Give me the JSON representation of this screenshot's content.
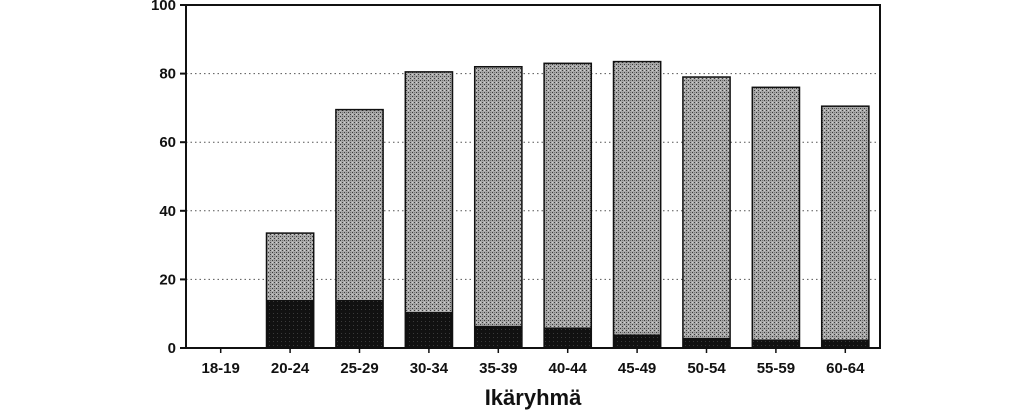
{
  "chart_data": {
    "type": "bar",
    "stacked": true,
    "categories": [
      "18-19",
      "20-24",
      "25-29",
      "30-34",
      "35-39",
      "40-44",
      "45-49",
      "50-54",
      "55-59",
      "60-64"
    ],
    "series": [
      {
        "values": [
          0,
          14,
          14,
          10.5,
          6.5,
          6,
          4,
          3,
          2.5,
          2.5
        ],
        "color": "#151515"
      },
      {
        "values": [
          0,
          19.5,
          55.5,
          70,
          75.5,
          77,
          79.5,
          76,
          73.5,
          68
        ],
        "color": "#9a9a9a"
      }
    ],
    "totals": [
      0,
      33.5,
      69.5,
      80.5,
      82,
      83,
      83.5,
      79,
      76,
      70.5
    ],
    "xlabel": "Ikäryhmä",
    "ylabel": "",
    "ylim": [
      0,
      100
    ],
    "yticks": [
      0,
      20,
      40,
      60,
      80,
      100
    ],
    "grid": "horizontal-dotted",
    "legend": "none"
  }
}
